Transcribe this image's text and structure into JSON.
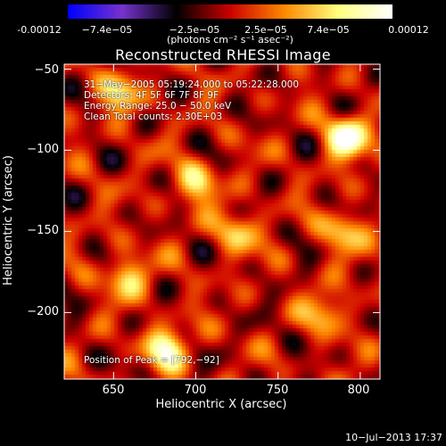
{
  "colorbar": {
    "tick_labels": [
      "-0.00012",
      "−7.4e−05",
      "−2.5e−05",
      "2.5e−05",
      "7.4e−05",
      "0.00012"
    ],
    "unit": "(photons cm⁻² s⁻¹ asec⁻²)",
    "range": [
      -0.00012,
      0.00012
    ],
    "colormap": [
      "#0000ff",
      "#7733cc",
      "#000000",
      "#cc0000",
      "#ff8800",
      "#ffff80",
      "#ffffff"
    ]
  },
  "chart_data": {
    "type": "heatmap",
    "title": "Reconstructed RHESSI Image",
    "xlabel": "Heliocentric X (arcsec)",
    "ylabel": "Heliocentric Y (arcsec)",
    "xlim": [
      620,
      812
    ],
    "ylim": [
      -241,
      -47
    ],
    "x_ticks": [
      650,
      700,
      750,
      800
    ],
    "y_ticks": [
      -50,
      -100,
      -150,
      -200
    ],
    "x_tick_labels": [
      "650",
      "700",
      "750",
      "800"
    ],
    "y_tick_labels": [
      "−50",
      "−100",
      "−150",
      "−200"
    ],
    "peak": [
      792,
      -92
    ],
    "bright_sources": [
      {
        "x": 792,
        "y": -92,
        "intensity": 1.0
      },
      {
        "x": 682,
        "y": -222,
        "intensity": 0.8
      },
      {
        "x": 790,
        "y": -150,
        "intensity": 0.55
      },
      {
        "x": 658,
        "y": -178,
        "intensity": 0.6
      },
      {
        "x": 700,
        "y": -120,
        "intensity": 0.6
      },
      {
        "x": 725,
        "y": -150,
        "intensity": 0.55
      },
      {
        "x": 655,
        "y": -65,
        "intensity": 0.55
      },
      {
        "x": 780,
        "y": -200,
        "intensity": 0.5
      }
    ]
  },
  "info": {
    "time": "31−May−2005 05:19:24.000 to 05:22:28.000",
    "detectors": "Detectors: 4F 5F 6F 7F 8F 9F",
    "energy": "Energy Range: 25.0 − 50.0 keV",
    "clean": "Clean    Total counts: 2.30E+03",
    "peak_label": "Position of Peak = [792,−92]"
  },
  "timestamp": "10−Jul−2013 17:37"
}
